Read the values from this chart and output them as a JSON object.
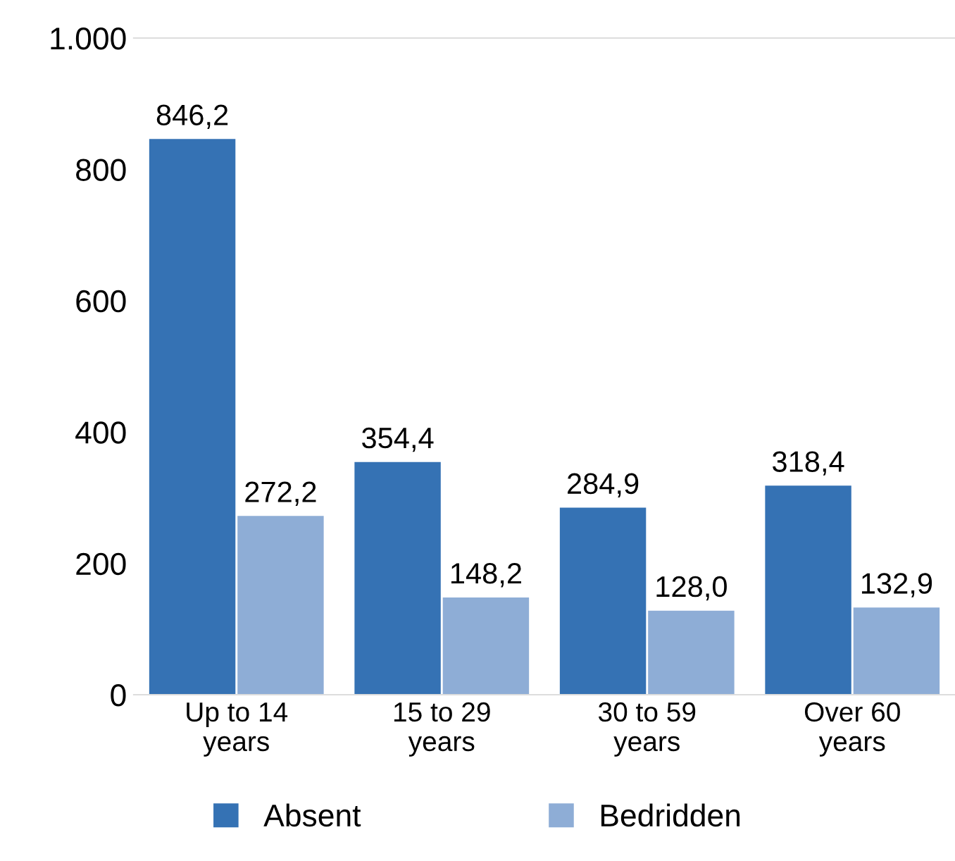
{
  "chart_data": {
    "type": "bar",
    "categories": [
      "Up to 14\nyears",
      "15 to 29\nyears",
      "30 to 59\nyears",
      "Over 60\nyears"
    ],
    "series": [
      {
        "name": "Absent",
        "color": "#3572b4",
        "values": [
          846.2,
          354.4,
          284.9,
          318.4
        ],
        "value_labels": [
          "846,2",
          "354,4",
          "284,9",
          "318,4"
        ]
      },
      {
        "name": "Bedridden",
        "color": "#8eadd6",
        "values": [
          272.2,
          148.2,
          128.0,
          132.9
        ],
        "value_labels": [
          "272,2",
          "148,2",
          "128,0",
          "132,9"
        ]
      }
    ],
    "ylim": [
      0,
      1000
    ],
    "yticks": [
      0,
      200,
      400,
      600,
      800,
      {
        "value": 1000,
        "label": "1.000"
      }
    ],
    "grid": false,
    "legend": "bottom"
  }
}
